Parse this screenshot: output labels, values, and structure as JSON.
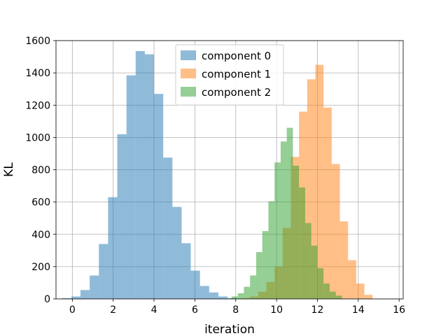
{
  "chart_data": {
    "type": "bar",
    "subtype": "overlapping-histogram",
    "xlabel": "iteration",
    "ylabel": "KL",
    "xlim": [
      -0.8,
      16.2
    ],
    "ylim": [
      0,
      1600
    ],
    "xticks": [
      0,
      2,
      4,
      6,
      8,
      10,
      12,
      14,
      16
    ],
    "yticks": [
      0,
      200,
      400,
      600,
      800,
      1000,
      1200,
      1400,
      1600
    ],
    "grid": true,
    "legend_position": "top-center",
    "series": [
      {
        "name": "component 0",
        "color": "#1f77b4",
        "opacity": 0.5,
        "bins": [
          {
            "x0": -0.5,
            "x1": -0.05,
            "count": 5
          },
          {
            "x0": -0.05,
            "x1": 0.4,
            "count": 15
          },
          {
            "x0": 0.4,
            "x1": 0.85,
            "count": 55
          },
          {
            "x0": 0.85,
            "x1": 1.3,
            "count": 145
          },
          {
            "x0": 1.3,
            "x1": 1.75,
            "count": 340
          },
          {
            "x0": 1.75,
            "x1": 2.2,
            "count": 630
          },
          {
            "x0": 2.2,
            "x1": 2.65,
            "count": 1020
          },
          {
            "x0": 2.65,
            "x1": 3.1,
            "count": 1385
          },
          {
            "x0": 3.1,
            "x1": 3.55,
            "count": 1535
          },
          {
            "x0": 3.55,
            "x1": 4.0,
            "count": 1515
          },
          {
            "x0": 4.0,
            "x1": 4.45,
            "count": 1270
          },
          {
            "x0": 4.45,
            "x1": 4.9,
            "count": 875
          },
          {
            "x0": 4.9,
            "x1": 5.35,
            "count": 570
          },
          {
            "x0": 5.35,
            "x1": 5.8,
            "count": 345
          },
          {
            "x0": 5.8,
            "x1": 6.25,
            "count": 175
          },
          {
            "x0": 6.25,
            "x1": 6.7,
            "count": 80
          },
          {
            "x0": 6.7,
            "x1": 7.15,
            "count": 40
          },
          {
            "x0": 7.15,
            "x1": 7.6,
            "count": 15
          },
          {
            "x0": 7.6,
            "x1": 8.05,
            "count": 5
          }
        ]
      },
      {
        "name": "component 1",
        "color": "#ff7f0e",
        "opacity": 0.5,
        "bins": [
          {
            "x0": 8.3,
            "x1": 8.7,
            "count": 5
          },
          {
            "x0": 8.7,
            "x1": 9.1,
            "count": 15
          },
          {
            "x0": 9.1,
            "x1": 9.5,
            "count": 45
          },
          {
            "x0": 9.5,
            "x1": 9.9,
            "count": 105
          },
          {
            "x0": 9.9,
            "x1": 10.3,
            "count": 200
          },
          {
            "x0": 10.3,
            "x1": 10.7,
            "count": 440
          },
          {
            "x0": 10.7,
            "x1": 11.1,
            "count": 880
          },
          {
            "x0": 11.1,
            "x1": 11.5,
            "count": 1160
          },
          {
            "x0": 11.5,
            "x1": 11.9,
            "count": 1360
          },
          {
            "x0": 11.9,
            "x1": 12.3,
            "count": 1450
          },
          {
            "x0": 12.3,
            "x1": 12.7,
            "count": 1185
          },
          {
            "x0": 12.7,
            "x1": 13.1,
            "count": 835
          },
          {
            "x0": 13.1,
            "x1": 13.5,
            "count": 480
          },
          {
            "x0": 13.5,
            "x1": 13.9,
            "count": 240
          },
          {
            "x0": 13.9,
            "x1": 14.3,
            "count": 95
          },
          {
            "x0": 14.3,
            "x1": 14.7,
            "count": 25
          }
        ]
      },
      {
        "name": "component 2",
        "color": "#2ca02c",
        "opacity": 0.5,
        "bins": [
          {
            "x0": 7.8,
            "x1": 8.1,
            "count": 15
          },
          {
            "x0": 8.1,
            "x1": 8.4,
            "count": 35
          },
          {
            "x0": 8.4,
            "x1": 8.7,
            "count": 75
          },
          {
            "x0": 8.7,
            "x1": 9.0,
            "count": 145
          },
          {
            "x0": 9.0,
            "x1": 9.3,
            "count": 290
          },
          {
            "x0": 9.3,
            "x1": 9.6,
            "count": 420
          },
          {
            "x0": 9.6,
            "x1": 9.9,
            "count": 605
          },
          {
            "x0": 9.9,
            "x1": 10.2,
            "count": 845
          },
          {
            "x0": 10.2,
            "x1": 10.5,
            "count": 975
          },
          {
            "x0": 10.5,
            "x1": 10.8,
            "count": 1060
          },
          {
            "x0": 10.8,
            "x1": 11.1,
            "count": 825
          },
          {
            "x0": 11.1,
            "x1": 11.4,
            "count": 690
          },
          {
            "x0": 11.4,
            "x1": 11.7,
            "count": 470
          },
          {
            "x0": 11.7,
            "x1": 12.0,
            "count": 330
          },
          {
            "x0": 12.0,
            "x1": 12.3,
            "count": 190
          },
          {
            "x0": 12.3,
            "x1": 12.6,
            "count": 95
          },
          {
            "x0": 12.6,
            "x1": 12.9,
            "count": 45
          },
          {
            "x0": 12.9,
            "x1": 13.2,
            "count": 20
          }
        ]
      }
    ]
  }
}
